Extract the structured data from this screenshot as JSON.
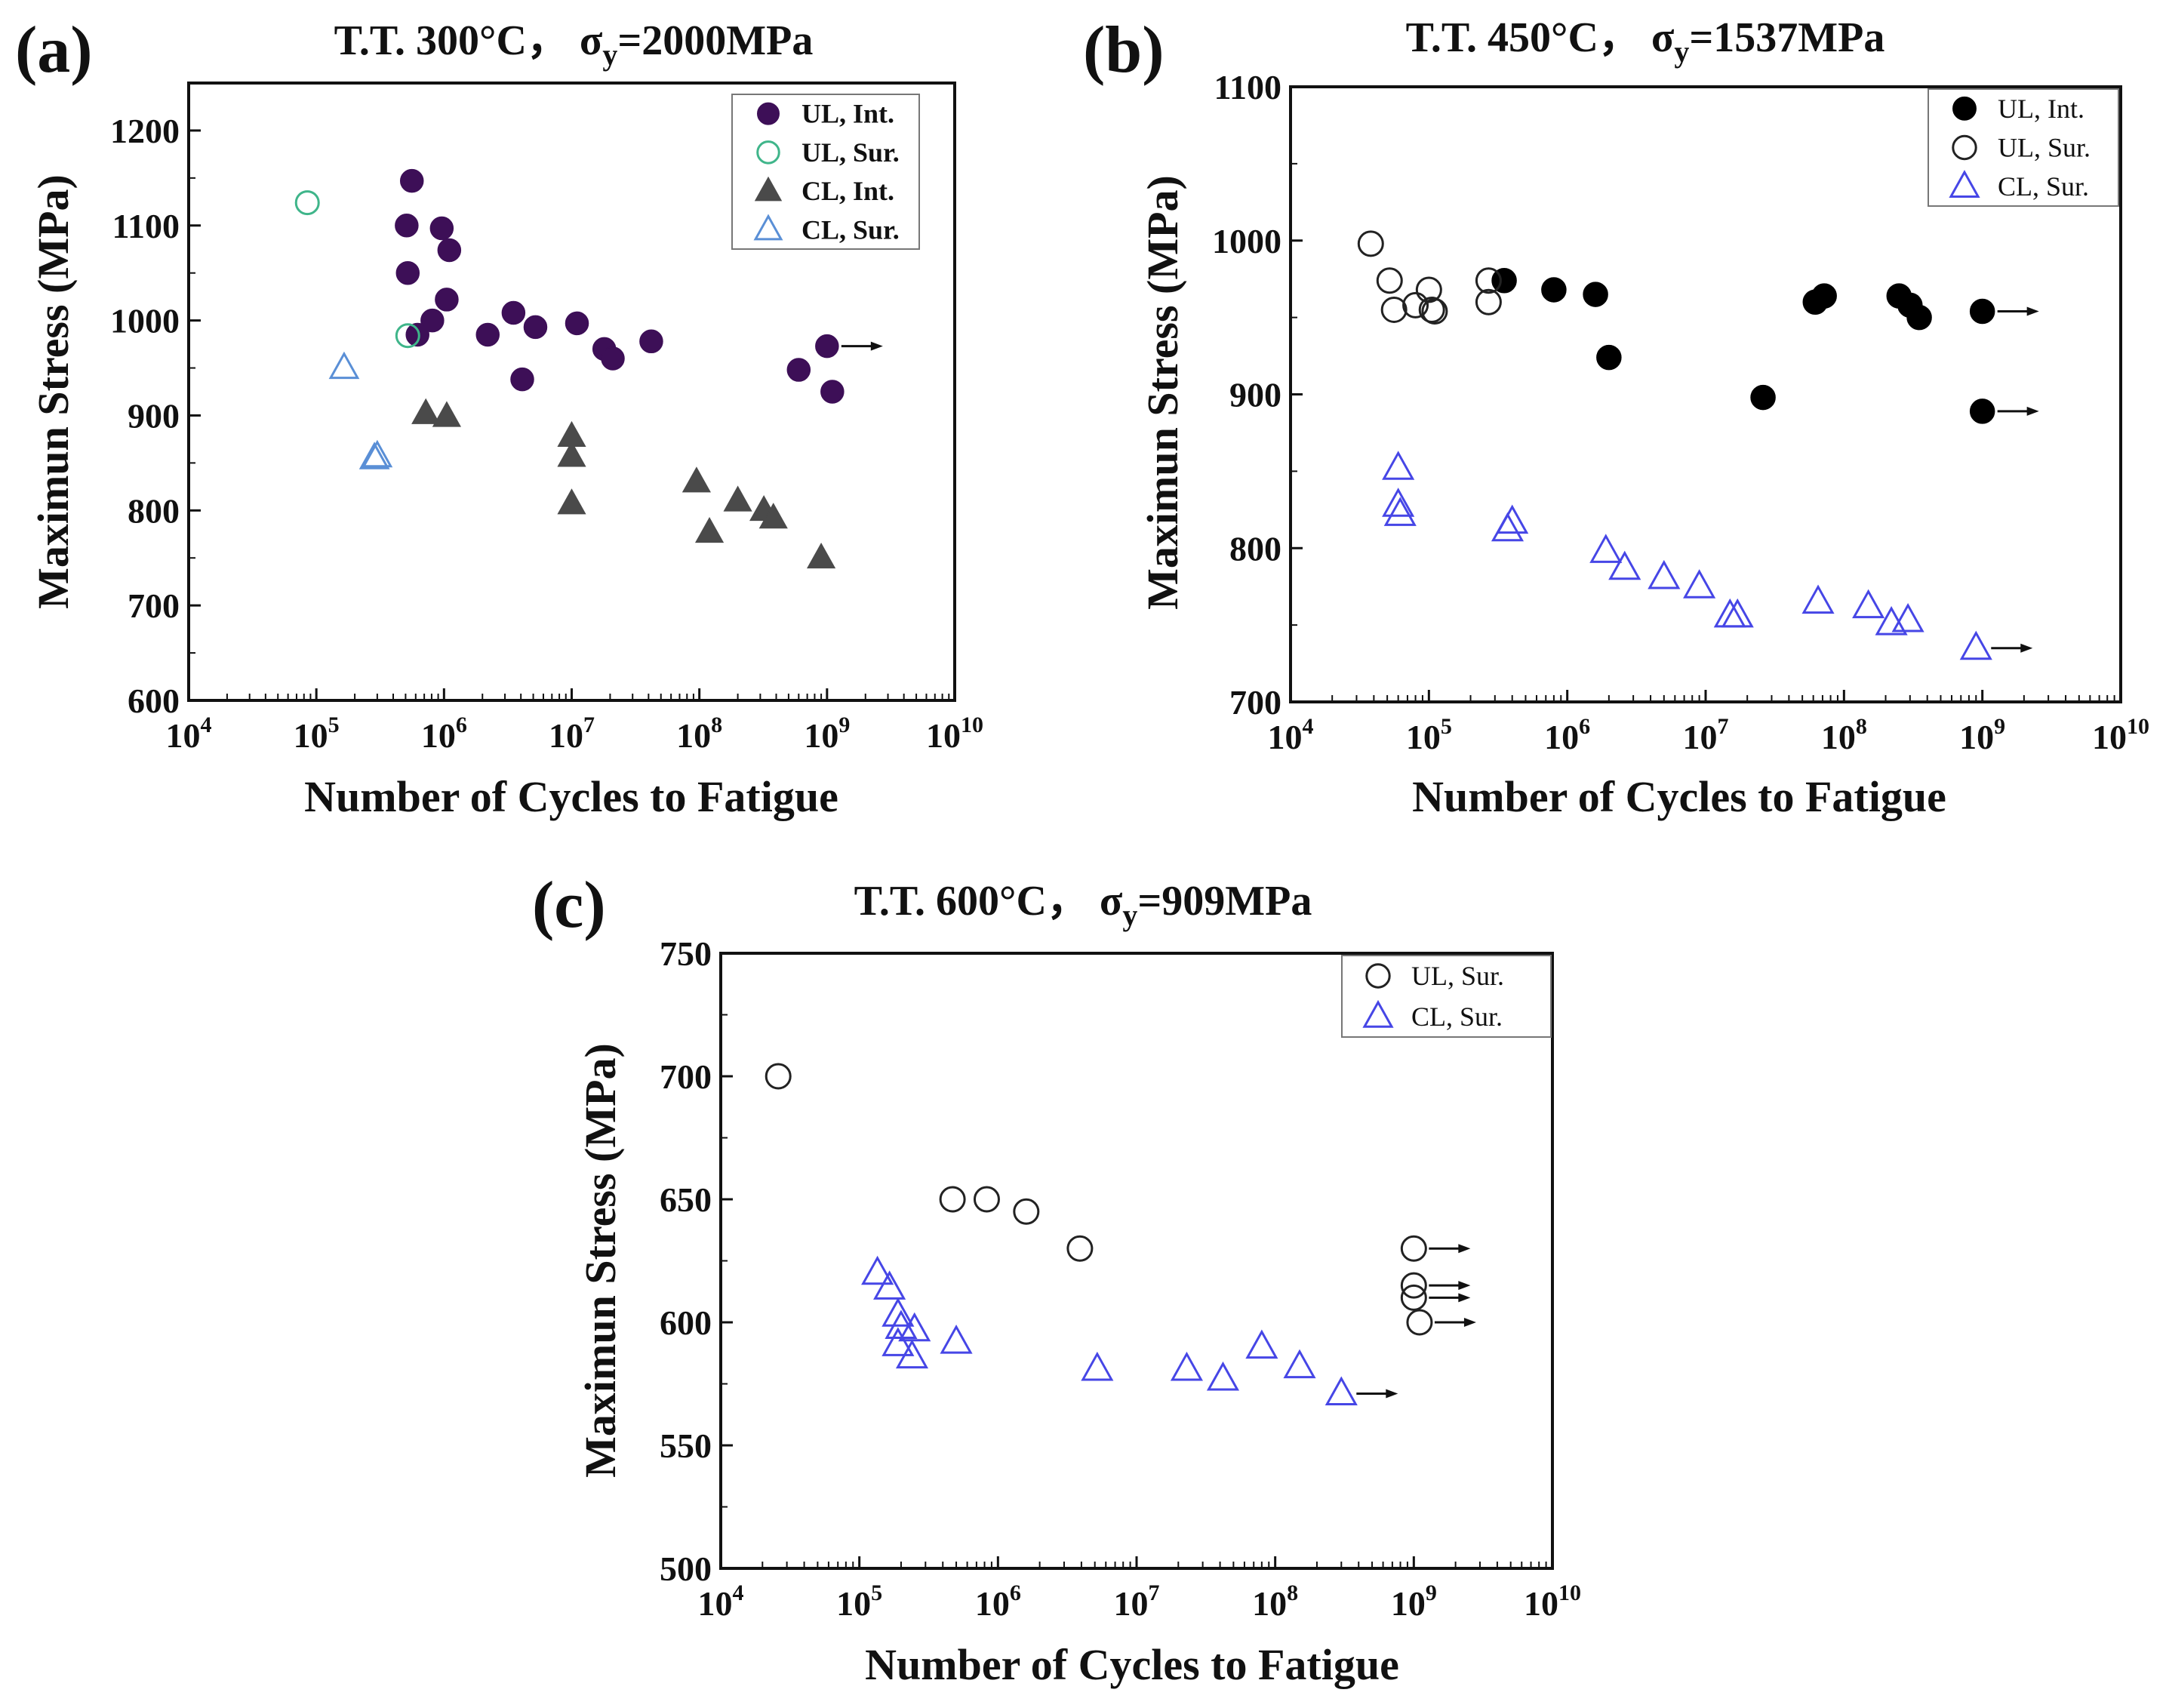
{
  "chart_data": [
    {
      "panel_label": "(a)",
      "title": "T.T. 300°C， σy=2000MPa",
      "title_parts": {
        "prefix": "T.T. 300°C，  σ",
        "sub": "y",
        "suffix": "=2000MPa"
      },
      "type": "scatter",
      "xlabel": "Number of Cycles to Fatigue",
      "ylabel": "Maximun Stress (MPa)",
      "x_scale": "log",
      "xlim": [
        10000,
        10000000000
      ],
      "ylim": [
        600,
        1250
      ],
      "x_ticks": [
        {
          "base": "10",
          "exp": "4"
        },
        {
          "base": "10",
          "exp": "5"
        },
        {
          "base": "10",
          "exp": "6"
        },
        {
          "base": "10",
          "exp": "7"
        },
        {
          "base": "10",
          "exp": "8"
        },
        {
          "base": "10",
          "exp": "9"
        },
        {
          "base": "10",
          "exp": "10"
        }
      ],
      "y_ticks": [
        600,
        700,
        800,
        900,
        1000,
        1100,
        1200
      ],
      "legend_position": "top-right",
      "series": [
        {
          "name": "UL, Int.",
          "marker": "circle",
          "filled": true,
          "color": "#3d0f57",
          "points": [
            [
              560000,
              1147
            ],
            [
              510000,
              1100
            ],
            [
              520000,
              1050
            ],
            [
              960000,
              1097
            ],
            [
              1100000,
              1074
            ],
            [
              1050000,
              1022
            ],
            [
              810000,
              1000
            ],
            [
              620000,
              985
            ],
            [
              2200000,
              985
            ],
            [
              3500000,
              1008
            ],
            [
              5200000,
              993
            ],
            [
              11000000,
              997
            ],
            [
              4100000,
              938
            ],
            [
              18000000,
              970
            ],
            [
              21000000,
              960
            ],
            [
              42000000,
              978
            ],
            [
              600000000,
              948
            ],
            [
              1000000000,
              973
            ],
            [
              1100000000,
              925
            ]
          ],
          "runouts": [
            [
              1000000000,
              973
            ]
          ]
        },
        {
          "name": "UL, Sur.",
          "marker": "circle",
          "filled": false,
          "color": "#3fb58a",
          "points": [
            [
              85000,
              1124
            ],
            [
              520000,
              984
            ]
          ],
          "runouts": []
        },
        {
          "name": "CL, Int.",
          "marker": "triangle",
          "filled": true,
          "color": "#4a4a4a",
          "points": [
            [
              720000,
              902
            ],
            [
              1050000,
              899
            ],
            [
              10000000,
              878
            ],
            [
              10000000,
              857
            ],
            [
              10000000,
              807
            ],
            [
              95000000,
              830
            ],
            [
              120000000,
              777
            ],
            [
              200000000,
              810
            ],
            [
              320000000,
              800
            ],
            [
              380000000,
              792
            ],
            [
              900000000,
              750
            ]
          ],
          "runouts": []
        },
        {
          "name": "CL, Sur.",
          "marker": "triangle",
          "filled": false,
          "color": "#5a8fd6",
          "points": [
            [
              165000,
              950
            ],
            [
              285000,
              855
            ],
            [
              300000,
              857
            ]
          ],
          "runouts": []
        }
      ]
    },
    {
      "panel_label": "(b)",
      "title": "T.T. 450°C， σy=1537MPa",
      "title_parts": {
        "prefix": "T.T. 450°C，  σ",
        "sub": "y",
        "suffix": "=1537MPa"
      },
      "type": "scatter",
      "xlabel": "Number of Cycles to Fatigue",
      "ylabel": "Maximun Stress (MPa)",
      "x_scale": "log",
      "xlim": [
        10000,
        10000000000
      ],
      "ylim": [
        700,
        1100
      ],
      "x_ticks": [
        {
          "base": "10",
          "exp": "4"
        },
        {
          "base": "10",
          "exp": "5"
        },
        {
          "base": "10",
          "exp": "6"
        },
        {
          "base": "10",
          "exp": "7"
        },
        {
          "base": "10",
          "exp": "8"
        },
        {
          "base": "10",
          "exp": "9"
        },
        {
          "base": "10",
          "exp": "10"
        }
      ],
      "y_ticks": [
        700,
        800,
        900,
        1000,
        1100
      ],
      "legend_position": "top-right",
      "series": [
        {
          "name": "UL, Int.",
          "marker": "circle",
          "filled": true,
          "color": "#000000",
          "points": [
            [
              350000,
              974
            ],
            [
              800000,
              968
            ],
            [
              1600000,
              965
            ],
            [
              2000000,
              924
            ],
            [
              26000000,
              898
            ],
            [
              62000000,
              960
            ],
            [
              72000000,
              964
            ],
            [
              250000000,
              964
            ],
            [
              300000000,
              958
            ],
            [
              350000000,
              950
            ],
            [
              1000000000,
              954
            ],
            [
              1000000000,
              889
            ]
          ],
          "runouts": [
            [
              1000000000,
              954
            ],
            [
              1000000000,
              889
            ]
          ]
        },
        {
          "name": "UL, Sur.",
          "marker": "circle",
          "filled": false,
          "color": "#222222",
          "points": [
            [
              38000,
              998
            ],
            [
              52000,
              974
            ],
            [
              56000,
              955
            ],
            [
              80000,
              958
            ],
            [
              100000,
              968
            ],
            [
              105000,
              955
            ],
            [
              110000,
              954
            ],
            [
              270000,
              974
            ],
            [
              270000,
              960
            ]
          ],
          "runouts": []
        },
        {
          "name": "CL, Sur.",
          "marker": "triangle",
          "filled": false,
          "color": "#4646e6",
          "points": [
            [
              60000,
              852
            ],
            [
              60000,
              828
            ],
            [
              62000,
              822
            ],
            [
              370000,
              812
            ],
            [
              400000,
              817
            ],
            [
              1900000,
              798
            ],
            [
              2600000,
              787
            ],
            [
              5000000,
              781
            ],
            [
              9000000,
              775
            ],
            [
              15000000,
              756
            ],
            [
              17000000,
              756
            ],
            [
              65000000,
              765
            ],
            [
              150000000,
              762
            ],
            [
              220000000,
              751
            ],
            [
              290000000,
              753
            ],
            [
              900000000,
              735
            ]
          ],
          "runouts": [
            [
              900000000,
              735
            ]
          ]
        }
      ]
    },
    {
      "panel_label": "(c)",
      "title": "T.T. 600°C， σy=909MPa",
      "title_parts": {
        "prefix": "T.T. 600°C，  σ",
        "sub": "y",
        "suffix": "=909MPa"
      },
      "type": "scatter",
      "xlabel": "Number of Cycles to Fatigue",
      "ylabel": "Maximun Stress (MPa)",
      "x_scale": "log",
      "xlim": [
        10000,
        10000000000
      ],
      "ylim": [
        500,
        750
      ],
      "x_ticks": [
        {
          "base": "10",
          "exp": "4"
        },
        {
          "base": "10",
          "exp": "5"
        },
        {
          "base": "10",
          "exp": "6"
        },
        {
          "base": "10",
          "exp": "7"
        },
        {
          "base": "10",
          "exp": "8"
        },
        {
          "base": "10",
          "exp": "9"
        },
        {
          "base": "10",
          "exp": "10"
        }
      ],
      "y_ticks": [
        500,
        550,
        600,
        650,
        700,
        750
      ],
      "legend_position": "top-right",
      "series": [
        {
          "name": "UL, Sur.",
          "marker": "circle",
          "filled": false,
          "color": "#222222",
          "points": [
            [
              26000,
              700
            ],
            [
              470000,
              650
            ],
            [
              830000,
              650
            ],
            [
              1600000,
              645
            ],
            [
              3900000,
              630
            ],
            [
              1000000000,
              630
            ],
            [
              1000000000,
              615
            ],
            [
              1000000000,
              610
            ],
            [
              1100000000,
              600
            ]
          ],
          "runouts": [
            [
              1000000000,
              630
            ],
            [
              1000000000,
              615
            ],
            [
              1000000000,
              610
            ],
            [
              1100000000,
              600
            ]
          ]
        },
        {
          "name": "CL, Sur.",
          "marker": "triangle",
          "filled": false,
          "color": "#4646e6",
          "points": [
            [
              135000,
              620
            ],
            [
              165000,
              614
            ],
            [
              190000,
              603
            ],
            [
              200000,
              598
            ],
            [
              190000,
              591
            ],
            [
              250000,
              597
            ],
            [
              240000,
              586
            ],
            [
              500000,
              592
            ],
            [
              5200000,
              581
            ],
            [
              23000000,
              581
            ],
            [
              42000000,
              577
            ],
            [
              80000000,
              590
            ],
            [
              150000000,
              582
            ],
            [
              300000000,
              571
            ]
          ],
          "runouts": [
            [
              300000000,
              571
            ]
          ]
        }
      ]
    }
  ]
}
